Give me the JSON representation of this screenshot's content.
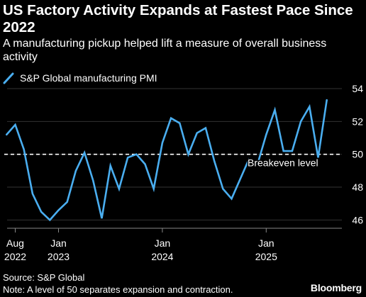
{
  "title": "US Factory Activity Expands at Fastest Pace Since 2022",
  "subtitle": "A manufacturing pickup helped lift a measure of overall business activity",
  "legend": {
    "label": "S&P Global manufacturing PMI",
    "icon": "line-swatch-icon"
  },
  "colors": {
    "background": "#000000",
    "series": "#4aaef0",
    "text": "#ffffff",
    "grid": "#333333"
  },
  "annotation": {
    "label": "Breakeven level",
    "value": 50
  },
  "source": "Source: S&P Global",
  "note": "Note: A level of 50 separates expansion and contraction.",
  "brand": "Bloomberg",
  "chart_data": {
    "type": "line",
    "title": "US Factory Activity Expands at Fastest Pace Since 2022",
    "subtitle": "A manufacturing pickup helped lift a measure of overall business activity",
    "ylim": [
      45.5,
      54
    ],
    "yticks": [
      46,
      48,
      50,
      52,
      54
    ],
    "y_axis_position": "right",
    "grid": true,
    "legend_position": "top-left",
    "x_ticks": [
      {
        "date": "2022-08",
        "line1": "Aug",
        "line2": "2022"
      },
      {
        "date": "2023-01",
        "line1": "Jan",
        "line2": "2023"
      },
      {
        "date": "2024-01",
        "line1": "Jan",
        "line2": "2024"
      },
      {
        "date": "2025-01",
        "line1": "Jan",
        "line2": "2025"
      }
    ],
    "reference_line": {
      "value": 50,
      "label": "Breakeven level",
      "style": "dashed"
    },
    "series": [
      {
        "name": "S&P Global manufacturing PMI",
        "points": [
          [
            "2022-07",
            51.2
          ],
          [
            "2022-08",
            51.8
          ],
          [
            "2022-09",
            50.3
          ],
          [
            "2022-10",
            47.6
          ],
          [
            "2022-11",
            46.5
          ],
          [
            "2022-12",
            46.0
          ],
          [
            "2023-01",
            46.6
          ],
          [
            "2023-02",
            47.1
          ],
          [
            "2023-03",
            49.0
          ],
          [
            "2023-04",
            50.1
          ],
          [
            "2023-05",
            48.4
          ],
          [
            "2023-06",
            46.1
          ],
          [
            "2023-07",
            49.3
          ],
          [
            "2023-08",
            47.9
          ],
          [
            "2023-09",
            49.8
          ],
          [
            "2023-10",
            50.0
          ],
          [
            "2023-11",
            49.4
          ],
          [
            "2023-12",
            47.9
          ],
          [
            "2024-01",
            50.7
          ],
          [
            "2024-02",
            52.2
          ],
          [
            "2024-03",
            51.9
          ],
          [
            "2024-04",
            50.0
          ],
          [
            "2024-05",
            51.3
          ],
          [
            "2024-06",
            51.6
          ],
          [
            "2024-07",
            49.6
          ],
          [
            "2024-08",
            47.9
          ],
          [
            "2024-09",
            47.3
          ],
          [
            "2024-10",
            48.5
          ],
          [
            "2024-11",
            49.7
          ],
          [
            "2024-12",
            49.4
          ],
          [
            "2025-01",
            51.2
          ],
          [
            "2025-02",
            52.7
          ],
          [
            "2025-03",
            50.2
          ],
          [
            "2025-04",
            50.2
          ],
          [
            "2025-05",
            52.0
          ],
          [
            "2025-06",
            52.9
          ],
          [
            "2025-07",
            49.8
          ],
          [
            "2025-08",
            53.3
          ]
        ]
      }
    ]
  }
}
